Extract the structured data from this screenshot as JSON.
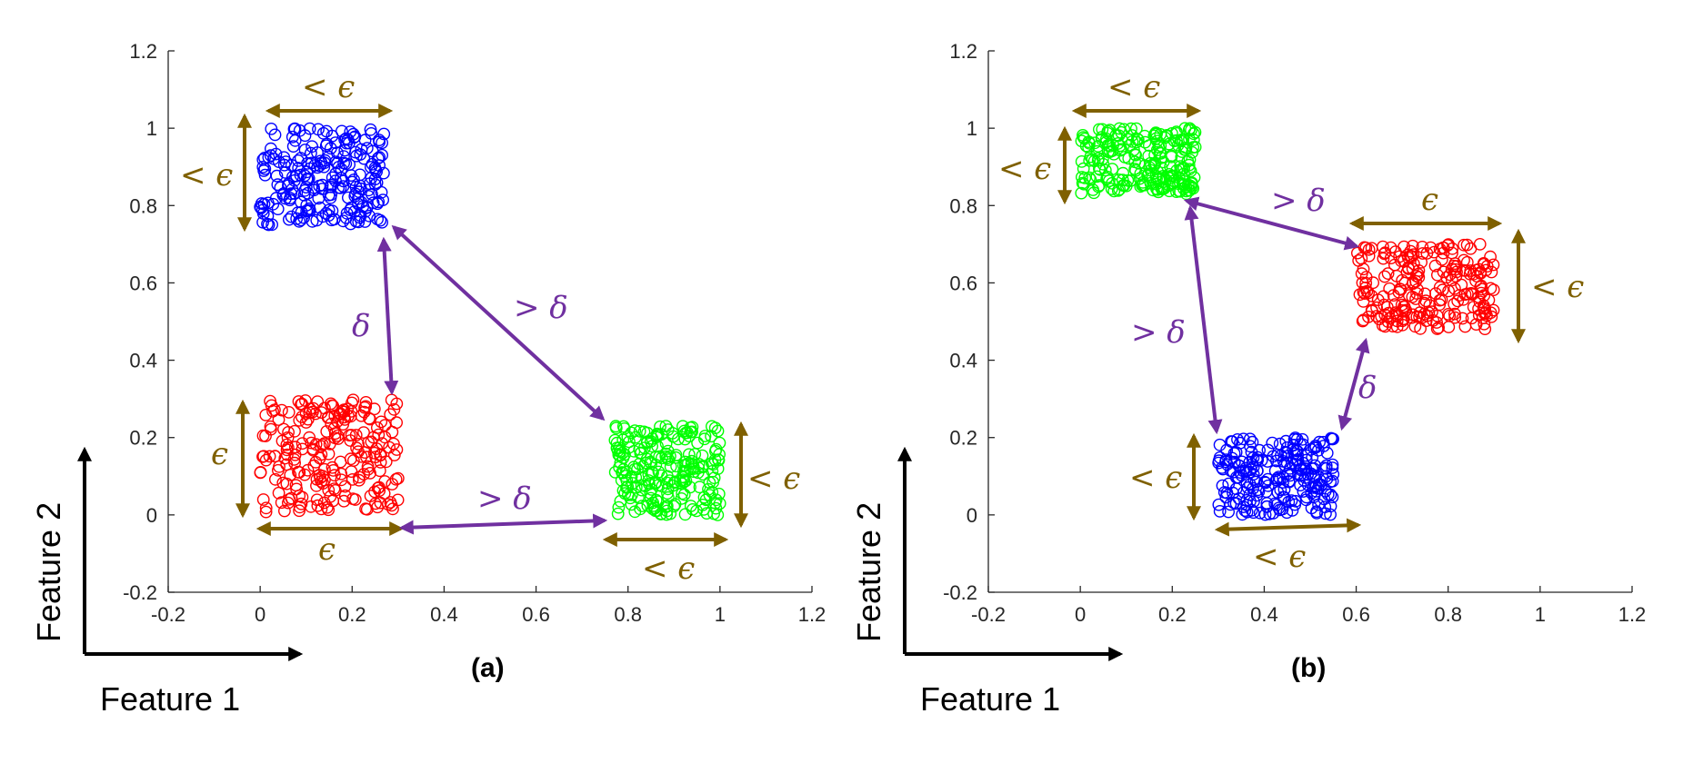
{
  "chart_data": [
    {
      "type": "scatter",
      "panel_label": "(a)",
      "xlim": [
        -0.2,
        1.2
      ],
      "ylim": [
        -0.2,
        1.2
      ],
      "xticks": [
        "-0.2",
        "0",
        "0.2",
        "0.4",
        "0.6",
        "0.8",
        "1",
        "1.2"
      ],
      "yticks": [
        "-0.2",
        "0",
        "0.2",
        "0.4",
        "0.6",
        "0.8",
        "1",
        "1.2"
      ],
      "xlabel": "Feature 1",
      "ylabel": "Feature 2",
      "series": [
        {
          "name": "blue cluster",
          "color": "#0000ff",
          "x_range": [
            0.0,
            0.27
          ],
          "y_range": [
            0.75,
            1.0
          ]
        },
        {
          "name": "red cluster",
          "color": "#ff0000",
          "x_range": [
            0.0,
            0.3
          ],
          "y_range": [
            0.0,
            0.3
          ]
        },
        {
          "name": "green cluster",
          "color": "#00ff00",
          "x_range": [
            0.77,
            1.0
          ],
          "y_range": [
            0.0,
            0.23
          ]
        }
      ],
      "annotations": [
        {
          "text": "< ϵ",
          "kind": "width",
          "cluster": "blue cluster"
        },
        {
          "text": "< ϵ",
          "kind": "height",
          "cluster": "blue cluster"
        },
        {
          "text": "ϵ",
          "kind": "height",
          "cluster": "red cluster"
        },
        {
          "text": "ϵ",
          "kind": "width",
          "cluster": "red cluster"
        },
        {
          "text": "< ϵ",
          "kind": "height",
          "cluster": "green cluster"
        },
        {
          "text": "< ϵ",
          "kind": "width",
          "cluster": "green cluster"
        },
        {
          "text": "δ",
          "kind": "distance",
          "between": [
            "blue cluster",
            "red cluster"
          ]
        },
        {
          "text": "> δ",
          "kind": "distance",
          "between": [
            "blue cluster",
            "green cluster"
          ]
        },
        {
          "text": "> δ",
          "kind": "distance",
          "between": [
            "red cluster",
            "green cluster"
          ]
        }
      ]
    },
    {
      "type": "scatter",
      "panel_label": "(b)",
      "xlim": [
        -0.2,
        1.2
      ],
      "ylim": [
        -0.2,
        1.2
      ],
      "xticks": [
        "-0.2",
        "0",
        "0.2",
        "0.4",
        "0.6",
        "0.8",
        "1",
        "1.2"
      ],
      "yticks": [
        "-0.2",
        "0",
        "0.2",
        "0.4",
        "0.6",
        "0.8",
        "1",
        "1.2"
      ],
      "xlabel": "Feature 1",
      "ylabel": "Feature 2",
      "series": [
        {
          "name": "green cluster",
          "color": "#00ff00",
          "x_range": [
            0.0,
            0.25
          ],
          "y_range": [
            0.83,
            1.0
          ]
        },
        {
          "name": "red cluster",
          "color": "#ff0000",
          "x_range": [
            0.6,
            0.9
          ],
          "y_range": [
            0.48,
            0.7
          ]
        },
        {
          "name": "blue cluster",
          "color": "#0000ff",
          "x_range": [
            0.3,
            0.55
          ],
          "y_range": [
            0.0,
            0.2
          ]
        }
      ],
      "annotations": [
        {
          "text": "< ϵ",
          "kind": "width",
          "cluster": "green cluster"
        },
        {
          "text": "< ϵ",
          "kind": "height",
          "cluster": "green cluster"
        },
        {
          "text": "ϵ",
          "kind": "width",
          "cluster": "red cluster"
        },
        {
          "text": "< ϵ",
          "kind": "height",
          "cluster": "red cluster"
        },
        {
          "text": "< ϵ",
          "kind": "height",
          "cluster": "blue cluster"
        },
        {
          "text": "< ϵ",
          "kind": "width",
          "cluster": "blue cluster"
        },
        {
          "text": "> δ",
          "kind": "distance",
          "between": [
            "green cluster",
            "red cluster"
          ]
        },
        {
          "text": "> δ",
          "kind": "distance",
          "between": [
            "green cluster",
            "blue cluster"
          ]
        },
        {
          "text": "δ",
          "kind": "distance",
          "between": [
            "blue cluster",
            "red cluster"
          ]
        }
      ]
    }
  ],
  "colors": {
    "annotation_size": "#7f6000",
    "annotation_distance": "#7030a0",
    "axis": "#262626"
  }
}
